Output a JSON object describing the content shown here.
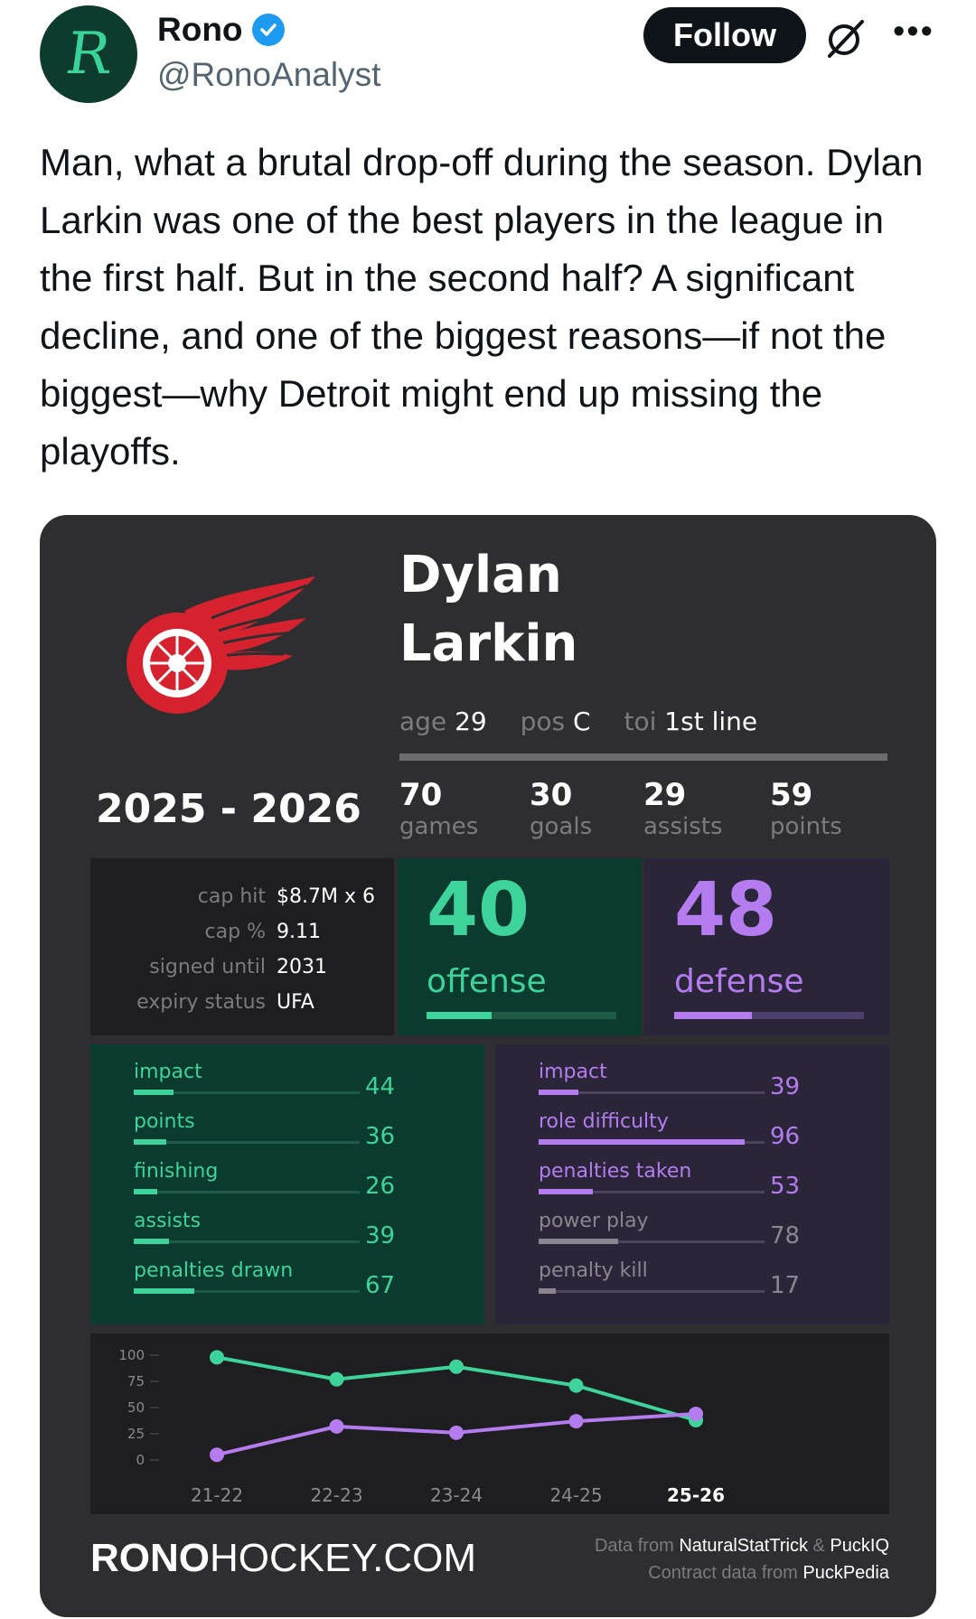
{
  "header": {
    "avatar_letter": "R",
    "display_name": "Rono",
    "handle": "@RonoAnalyst",
    "follow_label": "Follow",
    "more_label": "•••"
  },
  "tweet": {
    "text": "Man, what a brutal drop-off during the season. Dylan Larkin was one of the best players in the league in the first half. But in the second half? A significant decline, and one of the biggest reasons—if not the biggest—why Detroit might end up missing the playoffs."
  },
  "card": {
    "first_name": "Dylan",
    "last_name": "Larkin",
    "age_label": "age",
    "age": "29",
    "pos_label": "pos",
    "pos": "C",
    "toi_label": "toi",
    "toi": "1st line",
    "season": "2025 - 2026",
    "stats": [
      {
        "value": "70",
        "label": "games"
      },
      {
        "value": "30",
        "label": "goals"
      },
      {
        "value": "29",
        "label": "assists"
      },
      {
        "value": "59",
        "label": "points"
      }
    ],
    "contract": [
      {
        "label": "cap hit",
        "value": "$8.7M x 6"
      },
      {
        "label": "cap %",
        "value": "9.11"
      },
      {
        "label": "signed until",
        "value": "2031"
      },
      {
        "label": "expiry status",
        "value": "UFA"
      }
    ],
    "offense": {
      "value": "40",
      "label": "offense",
      "fill": 0.4
    },
    "defense": {
      "value": "48",
      "label": "defense",
      "fill": 0.48
    },
    "offense_metrics": [
      {
        "label": "impact",
        "value": "44",
        "fill": 0.44
      },
      {
        "label": "points",
        "value": "36",
        "fill": 0.36
      },
      {
        "label": "finishing",
        "value": "26",
        "fill": 0.26
      },
      {
        "label": "assists",
        "value": "39",
        "fill": 0.39
      },
      {
        "label": "penalties drawn",
        "value": "67",
        "fill": 0.67
      }
    ],
    "defense_metrics": [
      {
        "label": "impact",
        "value": "39",
        "fill": 0.39,
        "dim": false
      },
      {
        "label": "role difficulty",
        "value": "96",
        "fill": 0.96,
        "dim": false
      },
      {
        "label": "penalties taken",
        "value": "53",
        "fill": 0.53,
        "dim": false
      },
      {
        "label": "power play",
        "value": "78",
        "fill": 0.78,
        "dim": true
      },
      {
        "label": "penalty kill",
        "value": "17",
        "fill": 0.17,
        "dim": true
      }
    ],
    "site": "RONOHOCKEY.COM",
    "site_bold_part": "RONO",
    "site_rest_part": "HOCKEY.COM",
    "source_line1": {
      "prefix": "Data from",
      "a": "NaturalStatTrick",
      "amp": "&",
      "b": "PuckIQ"
    },
    "source_line2": {
      "prefix": "Contract data from",
      "a": "PuckPedia"
    }
  },
  "chart_data": {
    "type": "line",
    "x": [
      "21-22",
      "22-23",
      "23-24",
      "24-25",
      "25-26"
    ],
    "ylim": [
      0,
      100
    ],
    "yticks": [
      0,
      25,
      50,
      75,
      100
    ],
    "series": [
      {
        "color": "#3dd39a",
        "values": [
          98,
          77,
          89,
          71,
          38
        ]
      },
      {
        "color": "#b57cf0",
        "values": [
          5,
          32,
          26,
          37,
          44
        ]
      }
    ]
  },
  "colors": {
    "green": "#3dd39a",
    "purple": "#b57cf0",
    "card_bg": "#2e2e30",
    "offense_bg": "#0b3a2e",
    "defense_bg": "#2a2538",
    "logo_red": "#d6222f"
  }
}
